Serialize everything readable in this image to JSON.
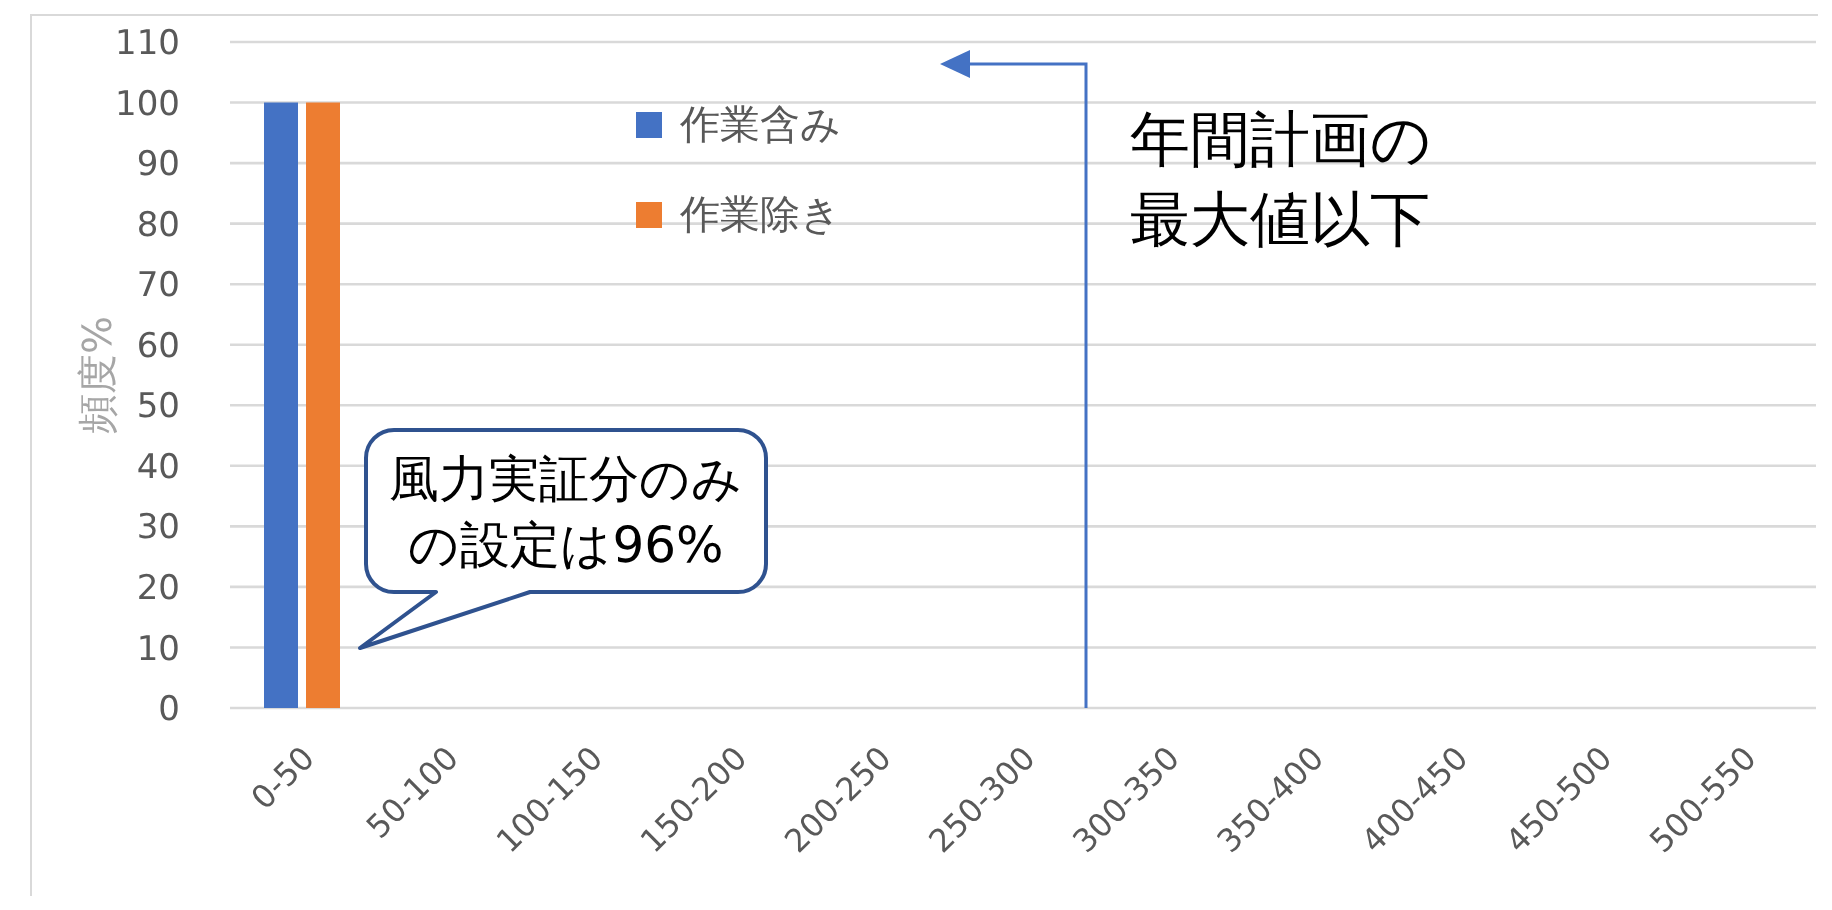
{
  "chart_data": {
    "type": "bar",
    "ylabel": "頻度%",
    "categories": [
      "0-50",
      "50-100",
      "100-150",
      "150-200",
      "200-250",
      "250-300",
      "300-350",
      "350-400",
      "400-450",
      "450-500",
      "500-550"
    ],
    "series": [
      {
        "name": "作業含み",
        "color": "#4472c4",
        "values": [
          100,
          0,
          0,
          0,
          0,
          0,
          0,
          0,
          0,
          0,
          0
        ]
      },
      {
        "name": "作業除き",
        "color": "#ed7d31",
        "values": [
          100,
          0,
          0,
          0,
          0,
          0,
          0,
          0,
          0,
          0,
          0
        ]
      }
    ],
    "ylim": [
      0,
      110
    ],
    "yticks": [
      0,
      10,
      20,
      30,
      40,
      50,
      60,
      70,
      80,
      90,
      100,
      110
    ],
    "grid": "y",
    "legend": "top left",
    "annotations": [
      "風力実証分のみの設定は96%",
      "年間計画の最大値以下"
    ]
  }
}
